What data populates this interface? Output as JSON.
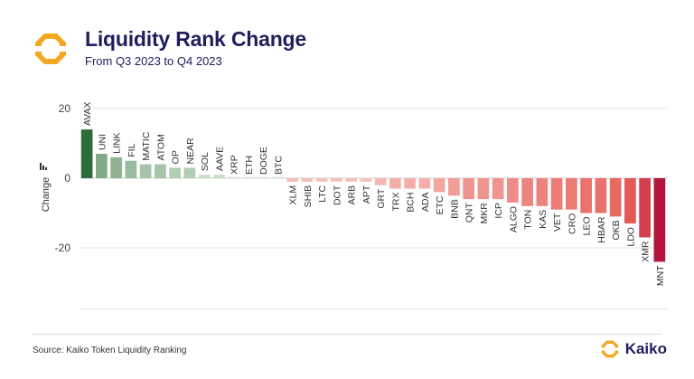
{
  "header": {
    "title": "Liquidity Rank Change",
    "subtitle": "From Q3 2023 to Q4 2023"
  },
  "footer": {
    "source": "Source: Kaiko Token Liquidity Ranking",
    "brand": "Kaiko"
  },
  "icons": {
    "logo": "kaiko-logo-icon",
    "brand": "kaiko-brand-icon"
  },
  "colors": {
    "title": "#1d1e5c",
    "logo": "#f5a623",
    "positive_dark": "#2e6b3a",
    "negative_dark": "#b5143a"
  },
  "chart_data": {
    "type": "bar",
    "ylabel": "Change",
    "ylim": [
      -37,
      27
    ],
    "yticks": [
      20,
      0,
      -20
    ],
    "grid": true,
    "categories": [
      "AVAX",
      "UNI",
      "LINK",
      "FIL",
      "MATIC",
      "ATOM",
      "OP",
      "NEAR",
      "SOL",
      "AAVE",
      "XRP",
      "ETH",
      "DOGE",
      "BTC",
      "XLM",
      "SHIB",
      "LTC",
      "DOT",
      "ARB",
      "APT",
      "GRT",
      "TRX",
      "BCH",
      "ADA",
      "ETC",
      "BNB",
      "QNT",
      "MKR",
      "ICP",
      "ALGO",
      "TON",
      "KAS",
      "VET",
      "CRO",
      "LEO",
      "HBAR",
      "OKB",
      "LDO",
      "XMR",
      "MNT"
    ],
    "values": [
      14,
      7,
      6,
      5,
      4,
      4,
      3,
      3,
      1,
      1,
      0,
      0,
      0,
      0,
      -1,
      -1,
      -1,
      -1,
      -1,
      -1,
      -2,
      -3,
      -3,
      -3,
      -4,
      -5,
      -6,
      -6,
      -6,
      -7,
      -8,
      -8,
      -9,
      -9,
      -10,
      -10,
      -11,
      -13,
      -17,
      -24
    ]
  }
}
